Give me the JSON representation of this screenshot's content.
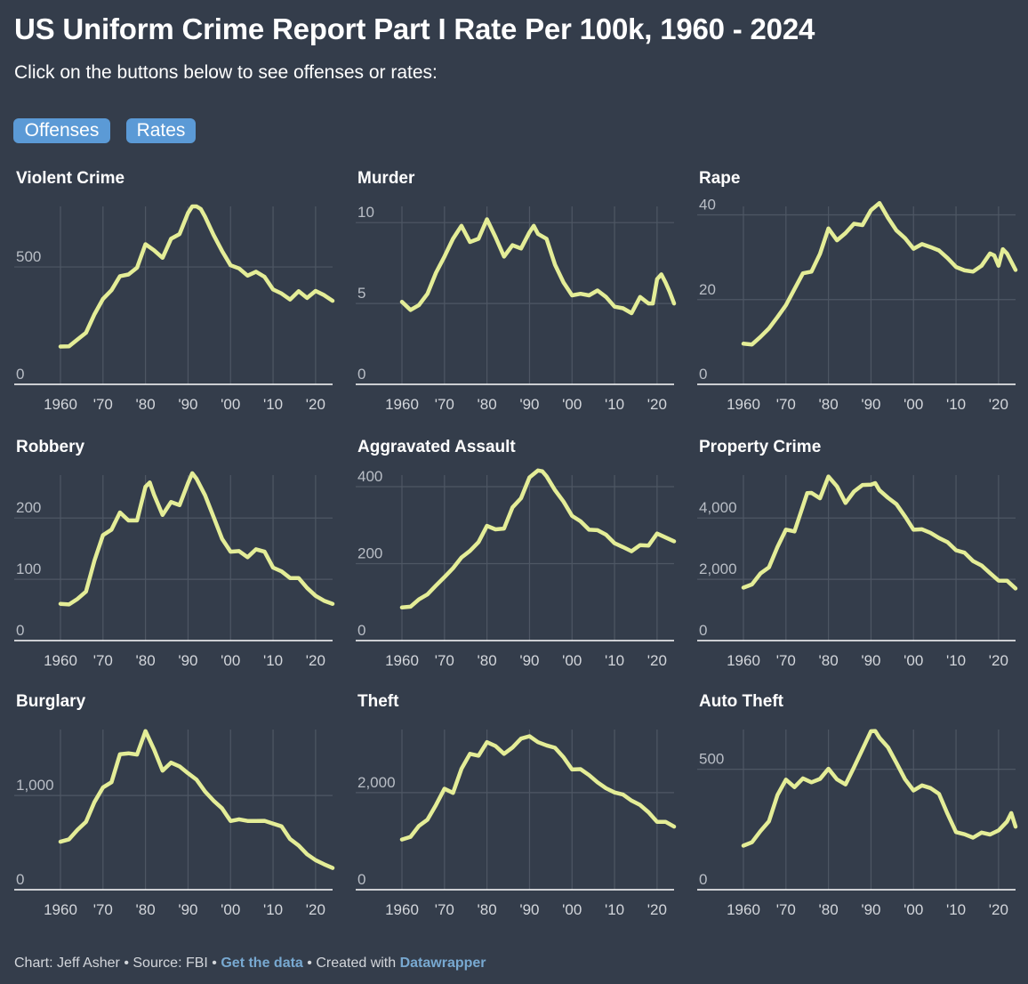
{
  "header": {
    "title": "US Uniform Crime Report Part I Rate Per 100k, 1960 - 2024",
    "subtitle": "Click on the buttons below to see offenses or rates:"
  },
  "buttons": {
    "offenses_label": "Offenses",
    "rates_label": "Rates"
  },
  "colors": {
    "background": "#343d4b",
    "line": "#e4ed97",
    "grid": "#4e5764",
    "button": "#5b9ad6",
    "tick_text": "#d3d6db",
    "link": "#78a9d1"
  },
  "footer": {
    "credit": "Chart: Jeff Asher",
    "sep1": " • ",
    "source": "Source: FBI",
    "sep2": " • ",
    "data_link": "Get the data",
    "sep3": " • Created with ",
    "tool_link": "Datawrapper"
  },
  "chart_data": [
    {
      "type": "line",
      "title": "Violent Crime",
      "xlabel": "",
      "ylabel": "",
      "xlim": [
        1960,
        2024
      ],
      "ylim": [
        0,
        758
      ],
      "yticks": [
        0,
        500
      ],
      "xticks": [
        1960,
        1970,
        1980,
        1990,
        2000,
        2010,
        2020
      ],
      "xtick_labels": [
        "1960",
        "'70",
        "'80",
        "'90",
        "'00",
        "'10",
        "'20"
      ],
      "x": [
        1960,
        1962,
        1964,
        1966,
        1968,
        1970,
        1972,
        1974,
        1976,
        1978,
        1980,
        1982,
        1984,
        1986,
        1988,
        1990,
        1991,
        1992,
        1993,
        1994,
        1996,
        1998,
        2000,
        2002,
        2004,
        2006,
        2008,
        2010,
        2012,
        2014,
        2016,
        2018,
        2020,
        2022,
        2024
      ],
      "y": [
        161,
        162,
        191,
        220,
        299,
        364,
        401,
        461,
        468,
        497,
        597,
        571,
        539,
        620,
        640,
        730,
        758,
        758,
        747,
        714,
        637,
        568,
        507,
        494,
        463,
        480,
        458,
        404,
        387,
        361,
        397,
        368,
        398,
        380,
        356
      ]
    },
    {
      "type": "line",
      "title": "Murder",
      "xlabel": "",
      "ylabel": "",
      "xlim": [
        1960,
        2024
      ],
      "ylim": [
        0,
        11
      ],
      "yticks": [
        0,
        5,
        10
      ],
      "xticks": [
        1960,
        1970,
        1980,
        1990,
        2000,
        2010,
        2020
      ],
      "xtick_labels": [
        "1960",
        "'70",
        "'80",
        "'90",
        "'00",
        "'10",
        "'20"
      ],
      "x": [
        1960,
        1962,
        1964,
        1966,
        1968,
        1970,
        1972,
        1974,
        1976,
        1978,
        1980,
        1982,
        1984,
        1986,
        1988,
        1990,
        1991,
        1992,
        1994,
        1996,
        1998,
        2000,
        2002,
        2004,
        2006,
        2008,
        2010,
        2012,
        2014,
        2016,
        2018,
        2019,
        2020,
        2021,
        2022,
        2023,
        2024
      ],
      "y": [
        5.1,
        4.6,
        4.9,
        5.6,
        6.9,
        7.9,
        9.0,
        9.8,
        8.8,
        9.0,
        10.2,
        9.1,
        7.9,
        8.6,
        8.4,
        9.4,
        9.8,
        9.3,
        9.0,
        7.4,
        6.3,
        5.5,
        5.6,
        5.5,
        5.8,
        5.4,
        4.8,
        4.7,
        4.4,
        5.4,
        5.0,
        5.0,
        6.5,
        6.8,
        6.3,
        5.7,
        5.0
      ]
    },
    {
      "type": "line",
      "title": "Rape",
      "xlabel": "",
      "ylabel": "",
      "xlim": [
        1960,
        2024
      ],
      "ylim": [
        0,
        42
      ],
      "yticks": [
        0,
        20,
        40
      ],
      "xticks": [
        1960,
        1970,
        1980,
        1990,
        2000,
        2010,
        2020
      ],
      "xtick_labels": [
        "1960",
        "'70",
        "'80",
        "'90",
        "'00",
        "'10",
        "'20"
      ],
      "x": [
        1960,
        1962,
        1964,
        1966,
        1968,
        1970,
        1972,
        1974,
        1976,
        1978,
        1980,
        1982,
        1984,
        1986,
        1988,
        1990,
        1992,
        1994,
        1996,
        1998,
        2000,
        2002,
        2004,
        2006,
        2008,
        2010,
        2012,
        2014,
        2016,
        2018,
        2019,
        2020,
        2021,
        2022,
        2024
      ],
      "y": [
        9.6,
        9.4,
        11.2,
        13.2,
        15.9,
        18.7,
        22.5,
        26.2,
        26.6,
        30.8,
        36.8,
        34.0,
        35.7,
        37.9,
        37.6,
        41.1,
        42.8,
        39.3,
        36.3,
        34.5,
        32.0,
        33.1,
        32.4,
        31.6,
        29.8,
        27.7,
        26.9,
        26.6,
        28.0,
        30.9,
        30.4,
        28.0,
        31.9,
        30.9,
        27.0
      ]
    },
    {
      "type": "line",
      "title": "Robbery",
      "xlabel": "",
      "ylabel": "",
      "xlim": [
        1960,
        2024
      ],
      "ylim": [
        0,
        270
      ],
      "yticks": [
        0,
        100,
        200
      ],
      "xticks": [
        1960,
        1970,
        1980,
        1990,
        2000,
        2010,
        2020
      ],
      "xtick_labels": [
        "1960",
        "'70",
        "'80",
        "'90",
        "'00",
        "'10",
        "'20"
      ],
      "x": [
        1960,
        1962,
        1964,
        1966,
        1968,
        1970,
        1972,
        1974,
        1976,
        1978,
        1980,
        1981,
        1982,
        1984,
        1986,
        1988,
        1990,
        1991,
        1992,
        1994,
        1996,
        1998,
        2000,
        2002,
        2004,
        2006,
        2008,
        2010,
        2012,
        2014,
        2016,
        2018,
        2020,
        2022,
        2024
      ],
      "y": [
        60,
        59,
        68,
        80,
        131,
        172,
        181,
        209,
        196,
        196,
        251,
        258,
        238,
        205,
        226,
        221,
        257,
        273,
        264,
        237,
        202,
        166,
        145,
        146,
        136,
        149,
        145,
        119,
        113,
        102,
        102,
        86,
        73,
        65,
        60
      ]
    },
    {
      "type": "line",
      "title": "Aggravated Assault",
      "xlabel": "",
      "ylabel": "",
      "xlim": [
        1960,
        2024
      ],
      "ylim": [
        0,
        430
      ],
      "yticks": [
        0,
        200,
        400
      ],
      "xticks": [
        1960,
        1970,
        1980,
        1990,
        2000,
        2010,
        2020
      ],
      "xtick_labels": [
        "1960",
        "'70",
        "'80",
        "'90",
        "'00",
        "'10",
        "'20"
      ],
      "x": [
        1960,
        1962,
        1964,
        1966,
        1968,
        1970,
        1972,
        1974,
        1976,
        1978,
        1980,
        1982,
        1984,
        1986,
        1988,
        1990,
        1992,
        1993,
        1994,
        1996,
        1998,
        2000,
        2002,
        2004,
        2006,
        2008,
        2010,
        2012,
        2014,
        2016,
        2018,
        2020,
        2022,
        2024
      ],
      "y": [
        86,
        88,
        107,
        120,
        143,
        165,
        188,
        216,
        233,
        256,
        298,
        289,
        291,
        346,
        370,
        424,
        442,
        440,
        427,
        391,
        361,
        324,
        310,
        288,
        287,
        275,
        253,
        243,
        232,
        248,
        247,
        278,
        268,
        258
      ]
    },
    {
      "type": "line",
      "title": "Property Crime",
      "xlabel": "",
      "ylabel": "",
      "xlim": [
        1960,
        2024
      ],
      "ylim": [
        0,
        5400
      ],
      "yticks": [
        0,
        2000,
        4000
      ],
      "xticks": [
        1960,
        1970,
        1980,
        1990,
        2000,
        2010,
        2020
      ],
      "xtick_labels": [
        "1960",
        "'70",
        "'80",
        "'90",
        "'00",
        "'10",
        "'20"
      ],
      "x": [
        1960,
        1962,
        1964,
        1966,
        1968,
        1970,
        1972,
        1974,
        1975,
        1976,
        1978,
        1980,
        1982,
        1984,
        1986,
        1988,
        1990,
        1991,
        1992,
        1994,
        1996,
        1998,
        2000,
        2002,
        2004,
        2006,
        2008,
        2010,
        2012,
        2014,
        2016,
        2018,
        2020,
        2022,
        2024
      ],
      "y": [
        1726,
        1831,
        2189,
        2390,
        3056,
        3621,
        3561,
        4389,
        4811,
        4820,
        4642,
        5353,
        5032,
        4492,
        4863,
        5078,
        5089,
        5140,
        4903,
        4660,
        4451,
        4053,
        3618,
        3631,
        3517,
        3346,
        3212,
        2946,
        2868,
        2596,
        2451,
        2200,
        1958,
        1954,
        1700
      ]
    },
    {
      "type": "line",
      "title": "Burglary",
      "xlabel": "",
      "ylabel": "",
      "xlim": [
        1960,
        2024
      ],
      "ylim": [
        0,
        1700
      ],
      "yticks": [
        0,
        1000
      ],
      "xticks": [
        1960,
        1970,
        1980,
        1990,
        2000,
        2010,
        2020
      ],
      "xtick_labels": [
        "1960",
        "'70",
        "'80",
        "'90",
        "'00",
        "'10",
        "'20"
      ],
      "x": [
        1960,
        1962,
        1964,
        1966,
        1968,
        1970,
        1972,
        1974,
        1976,
        1978,
        1980,
        1982,
        1984,
        1986,
        1988,
        1990,
        1992,
        1994,
        1996,
        1998,
        2000,
        2002,
        2004,
        2006,
        2008,
        2010,
        2012,
        2014,
        2016,
        2018,
        2020,
        2022,
        2024
      ],
      "y": [
        509,
        535,
        635,
        721,
        932,
        1085,
        1141,
        1438,
        1448,
        1435,
        1684,
        1488,
        1264,
        1349,
        1309,
        1236,
        1168,
        1042,
        945,
        863,
        729,
        747,
        730,
        729,
        731,
        701,
        672,
        537,
        469,
        376,
        314,
        270,
        230
      ]
    },
    {
      "type": "line",
      "title": "Theft",
      "xlabel": "",
      "ylabel": "",
      "xlim": [
        1960,
        2024
      ],
      "ylim": [
        0,
        3300
      ],
      "yticks": [
        0,
        2000
      ],
      "xticks": [
        1960,
        1970,
        1980,
        1990,
        2000,
        2010,
        2020
      ],
      "xtick_labels": [
        "1960",
        "'70",
        "'80",
        "'90",
        "'00",
        "'10",
        "'20"
      ],
      "x": [
        1960,
        1962,
        1964,
        1966,
        1968,
        1970,
        1972,
        1974,
        1976,
        1978,
        1980,
        1982,
        1984,
        1986,
        1988,
        1990,
        1992,
        1994,
        1996,
        1998,
        2000,
        2002,
        2004,
        2006,
        2008,
        2010,
        2012,
        2014,
        2016,
        2018,
        2020,
        2022,
        2024
      ],
      "y": [
        1034,
        1089,
        1314,
        1442,
        1748,
        2080,
        1994,
        2490,
        2800,
        2761,
        3040,
        2960,
        2800,
        2930,
        3113,
        3162,
        3040,
        2973,
        2925,
        2729,
        2477,
        2485,
        2362,
        2212,
        2090,
        2003,
        1959,
        1835,
        1745,
        1595,
        1398,
        1398,
        1300
      ]
    },
    {
      "type": "line",
      "title": "Auto Theft",
      "xlabel": "",
      "ylabel": "",
      "xlim": [
        1960,
        2024
      ],
      "ylim": [
        0,
        665
      ],
      "yticks": [
        0,
        500
      ],
      "xticks": [
        1960,
        1970,
        1980,
        1990,
        2000,
        2010,
        2020
      ],
      "xtick_labels": [
        "1960",
        "'70",
        "'80",
        "'90",
        "'00",
        "'10",
        "'20"
      ],
      "x": [
        1960,
        1962,
        1964,
        1966,
        1968,
        1970,
        1972,
        1974,
        1976,
        1978,
        1980,
        1982,
        1984,
        1986,
        1988,
        1990,
        1991,
        1992,
        1994,
        1996,
        1998,
        2000,
        2002,
        2004,
        2006,
        2008,
        2010,
        2012,
        2014,
        2016,
        2018,
        2020,
        2022,
        2023,
        2024
      ],
      "y": [
        183,
        197,
        243,
        284,
        393,
        457,
        426,
        462,
        446,
        460,
        502,
        458,
        437,
        508,
        583,
        658,
        659,
        631,
        591,
        526,
        459,
        412,
        433,
        422,
        398,
        315,
        239,
        230,
        216,
        237,
        229,
        246,
        283,
        318,
        262
      ]
    }
  ]
}
